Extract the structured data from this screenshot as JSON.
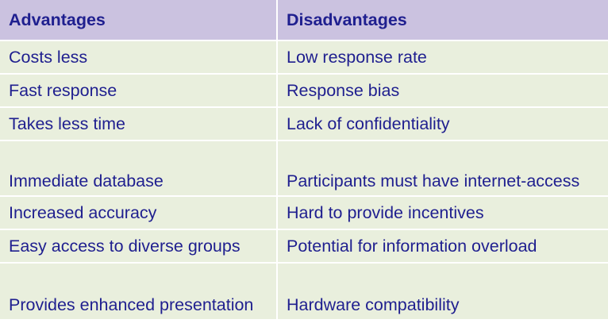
{
  "table": {
    "headers": [
      "Advantages",
      "Disadvantages"
    ],
    "rows": [
      [
        "Costs less",
        "Low response rate"
      ],
      [
        "Fast response",
        "Response bias"
      ],
      [
        "Takes less time",
        "Lack of confidentiality"
      ],
      [
        "Immediate database",
        "Participants must have internet-access"
      ],
      [
        "Increased accuracy",
        "Hard to provide incentives"
      ],
      [
        "Easy access to diverse groups",
        "Potential for information overload"
      ],
      [
        "Provides enhanced presentation",
        "Hardware compatibility"
      ]
    ]
  },
  "colors": {
    "header_bg": "#cbc2e0",
    "cell_bg": "#e9efdd",
    "text": "#1f1f8f"
  }
}
